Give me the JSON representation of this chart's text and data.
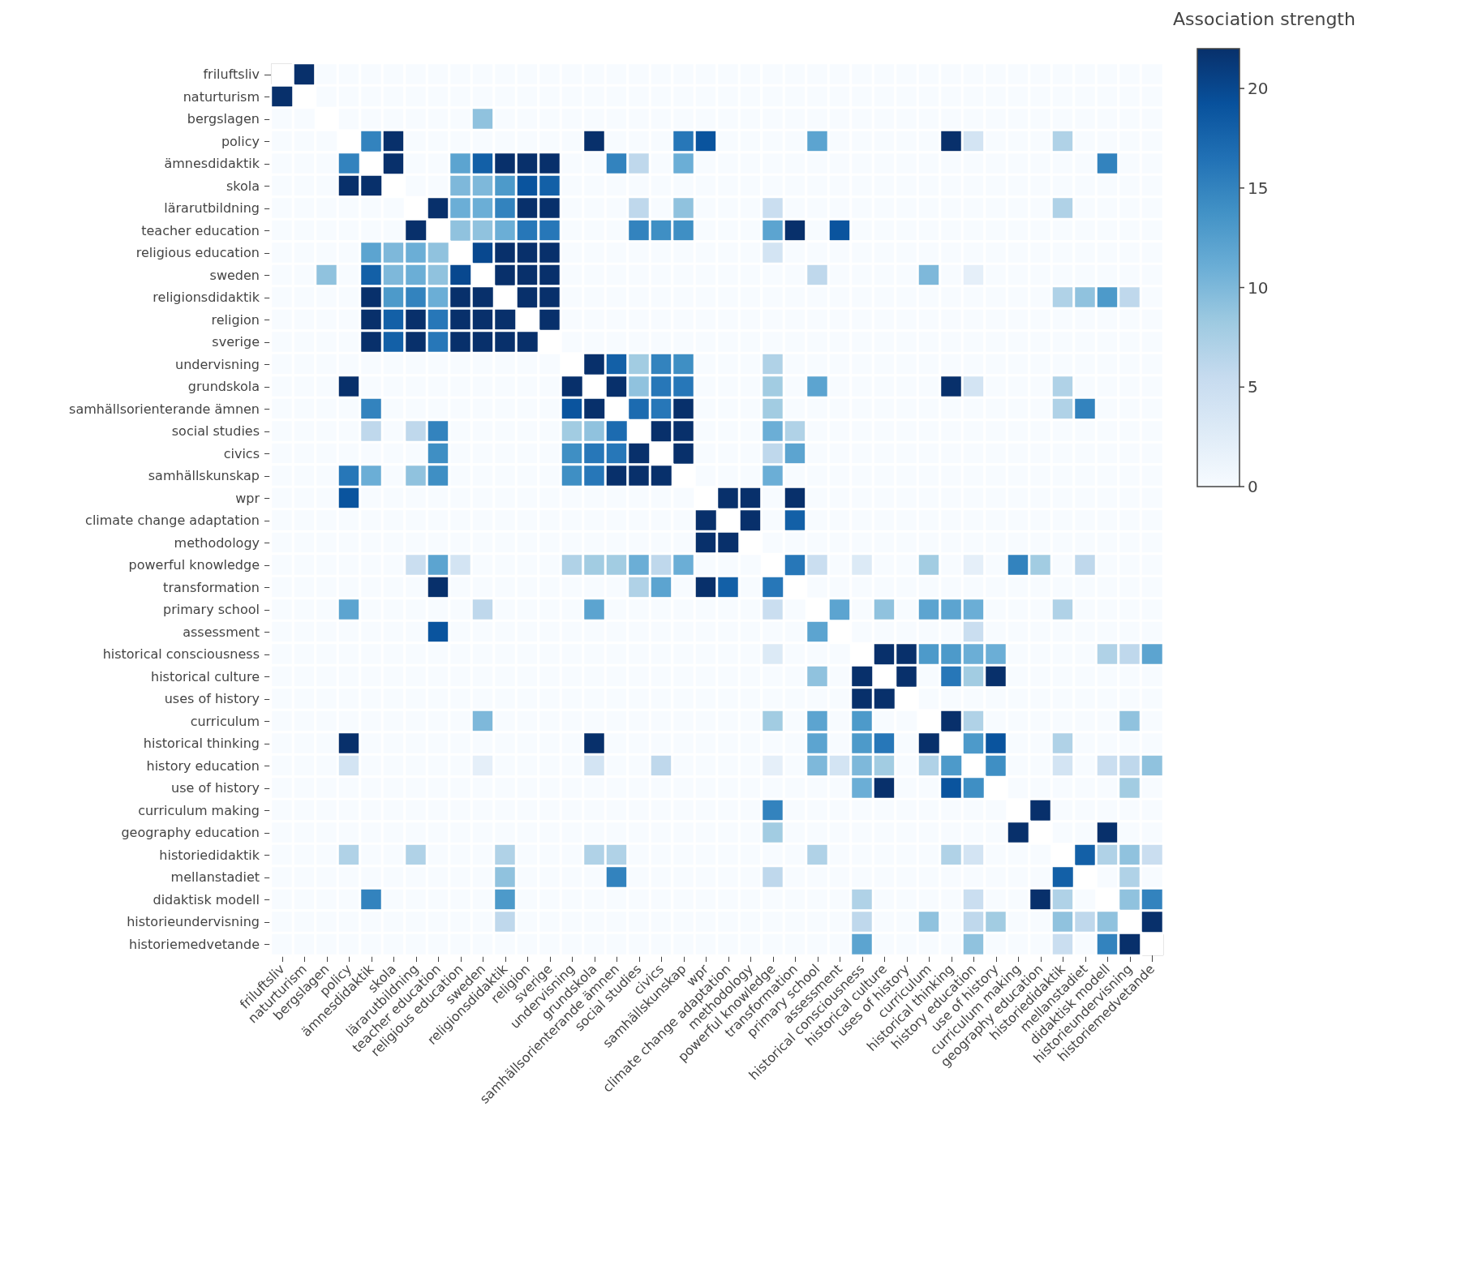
{
  "chart_data": {
    "type": "heatmap",
    "clabel": "Association strength",
    "categories": [
      "friluftsliv",
      "naturturism",
      "bergslagen",
      "policy",
      "ämnesdidaktik",
      "skola",
      "lärarutbildning",
      "teacher education",
      "religious education",
      "sweden",
      "religionsdidaktik",
      "religion",
      "sverige",
      "undervisning",
      "grundskola",
      "samhällsorienterande ämnen",
      "social studies",
      "civics",
      "samhällskunskap",
      "wpr",
      "climate change adaptation",
      "methodology",
      "powerful knowledge",
      "transformation",
      "primary school",
      "assessment",
      "historical consciousness",
      "historical culture",
      "uses of history",
      "curriculum",
      "historical thinking",
      "history education",
      "use of history",
      "curriculum making",
      "geography education",
      "historiedidaktik",
      "mellanstadiet",
      "didaktisk modell",
      "historieundervisning",
      "historiemedvetande"
    ],
    "y_categories": [
      "friluftsliv",
      "naturturism",
      "bergslagen",
      "policy",
      "ämnesdidaktik",
      "skola",
      "lärarutbildning",
      "teacher education",
      "religious education",
      "sweden",
      "religionsdidaktik",
      "religion",
      "sverige",
      "undervisning",
      "grundskola",
      "samhällsorienterande ämnen",
      "social studies",
      "civics",
      "samhällskunskap",
      "wpr",
      "climate change adaptation",
      "methodology",
      "powerful knowledge",
      "transformation",
      "primary school",
      "assessment",
      "historical consciousness",
      "historical culture",
      "uses of history",
      "curriculum",
      "historical thinking",
      "history education",
      "use of history",
      "curriculum making",
      "geography education",
      "historiedidaktik",
      "mellanstadiet",
      "didaktisk modell",
      "historieundervisning",
      "historiemedvetande"
    ],
    "clim": [
      0,
      22
    ],
    "cticks": [
      0,
      5,
      10,
      15,
      20
    ],
    "cells": [
      [
        null,
        22,
        0,
        0,
        0,
        0,
        0,
        0,
        0,
        0,
        0,
        0,
        0,
        0,
        0,
        0,
        0,
        0,
        0,
        0,
        0,
        0,
        0,
        0,
        0,
        0,
        0,
        0,
        0,
        0,
        0,
        0,
        0,
        0,
        0,
        0,
        0,
        0,
        0,
        0
      ],
      [
        22,
        null,
        0,
        0,
        0,
        0,
        0,
        0,
        0,
        0,
        0,
        0,
        0,
        0,
        0,
        0,
        0,
        0,
        0,
        0,
        0,
        0,
        0,
        0,
        0,
        0,
        0,
        0,
        0,
        0,
        0,
        0,
        0,
        0,
        0,
        0,
        0,
        0,
        0,
        0
      ],
      [
        0,
        0,
        null,
        0,
        0,
        0,
        0,
        0,
        0,
        9,
        0,
        0,
        0,
        0,
        0,
        0,
        0,
        0,
        0,
        0,
        0,
        0,
        0,
        0,
        0,
        0,
        0,
        0,
        0,
        0,
        0,
        0,
        0,
        0,
        0,
        0,
        0,
        0,
        0,
        0
      ],
      [
        0,
        0,
        0,
        null,
        15,
        22,
        0,
        0,
        0,
        0,
        0,
        0,
        0,
        0,
        22,
        0,
        0,
        0,
        16,
        19,
        0,
        0,
        0,
        0,
        12,
        0,
        0,
        0,
        0,
        0,
        22,
        4,
        0,
        0,
        0,
        7,
        0,
        0,
        0,
        0
      ],
      [
        0,
        0,
        0,
        15,
        null,
        22,
        0,
        0,
        12,
        18,
        22,
        22,
        22,
        0,
        0,
        15,
        6,
        0,
        11,
        0,
        0,
        0,
        0,
        0,
        0,
        0,
        0,
        0,
        0,
        0,
        0,
        0,
        0,
        0,
        0,
        0,
        0,
        15,
        0,
        0
      ],
      [
        0,
        0,
        0,
        22,
        22,
        null,
        0,
        0,
        10,
        10,
        13,
        19,
        18,
        0,
        0,
        0,
        0,
        0,
        0,
        0,
        0,
        0,
        0,
        0,
        0,
        0,
        0,
        0,
        0,
        0,
        0,
        0,
        0,
        0,
        0,
        0,
        0,
        0,
        0,
        0
      ],
      [
        0,
        0,
        0,
        0,
        0,
        0,
        null,
        22,
        11,
        11,
        15,
        22,
        22,
        0,
        0,
        0,
        6,
        0,
        9,
        0,
        0,
        0,
        5,
        0,
        0,
        0,
        0,
        0,
        0,
        0,
        0,
        0,
        0,
        0,
        0,
        7,
        0,
        0,
        0,
        0
      ],
      [
        0,
        0,
        0,
        0,
        0,
        0,
        22,
        null,
        9,
        9,
        11,
        16,
        16,
        0,
        0,
        0,
        15,
        14,
        14,
        0,
        0,
        0,
        12,
        22,
        0,
        19,
        0,
        0,
        0,
        0,
        0,
        0,
        0,
        0,
        0,
        0,
        0,
        0,
        0,
        0
      ],
      [
        0,
        0,
        0,
        0,
        12,
        10,
        11,
        9,
        null,
        20,
        22,
        22,
        22,
        0,
        0,
        0,
        0,
        0,
        0,
        0,
        0,
        0,
        4,
        0,
        0,
        0,
        0,
        0,
        0,
        0,
        0,
        0,
        0,
        0,
        0,
        0,
        0,
        0,
        0,
        0
      ],
      [
        0,
        0,
        9,
        0,
        18,
        10,
        11,
        9,
        20,
        null,
        22,
        22,
        22,
        0,
        0,
        0,
        0,
        0,
        0,
        0,
        0,
        0,
        0,
        0,
        6,
        0,
        0,
        0,
        0,
        10,
        0,
        2,
        0,
        0,
        0,
        0,
        0,
        0,
        0,
        0
      ],
      [
        0,
        0,
        0,
        0,
        22,
        13,
        15,
        11,
        22,
        22,
        null,
        22,
        22,
        0,
        0,
        0,
        0,
        0,
        0,
        0,
        0,
        0,
        0,
        0,
        0,
        0,
        0,
        0,
        0,
        0,
        0,
        0,
        0,
        0,
        0,
        7,
        9,
        13,
        6,
        0
      ],
      [
        0,
        0,
        0,
        0,
        22,
        18,
        22,
        16,
        22,
        22,
        22,
        null,
        22,
        0,
        0,
        0,
        0,
        0,
        0,
        0,
        0,
        0,
        0,
        0,
        0,
        0,
        0,
        0,
        0,
        0,
        0,
        0,
        0,
        0,
        0,
        0,
        0,
        0,
        0,
        0
      ],
      [
        0,
        0,
        0,
        0,
        22,
        18,
        22,
        16,
        22,
        22,
        22,
        22,
        null,
        0,
        0,
        0,
        0,
        0,
        0,
        0,
        0,
        0,
        0,
        0,
        0,
        0,
        0,
        0,
        0,
        0,
        0,
        0,
        0,
        0,
        0,
        0,
        0,
        0,
        0,
        0
      ],
      [
        0,
        0,
        0,
        0,
        0,
        0,
        0,
        0,
        0,
        0,
        0,
        0,
        0,
        null,
        22,
        18,
        8,
        15,
        14,
        0,
        0,
        0,
        7,
        0,
        0,
        0,
        0,
        0,
        0,
        0,
        0,
        0,
        0,
        0,
        0,
        0,
        0,
        0,
        0,
        0
      ],
      [
        0,
        0,
        0,
        22,
        0,
        0,
        0,
        0,
        0,
        0,
        0,
        0,
        0,
        22,
        null,
        22,
        9,
        16,
        16,
        0,
        0,
        0,
        8,
        0,
        12,
        0,
        0,
        0,
        0,
        0,
        22,
        4,
        0,
        0,
        0,
        7,
        0,
        0,
        0,
        0
      ],
      [
        0,
        0,
        0,
        0,
        15,
        0,
        0,
        0,
        0,
        0,
        0,
        0,
        0,
        19,
        22,
        null,
        17,
        16,
        22,
        0,
        0,
        0,
        8,
        0,
        0,
        0,
        0,
        0,
        0,
        0,
        0,
        0,
        0,
        0,
        0,
        7,
        15,
        0,
        0,
        0
      ],
      [
        0,
        0,
        0,
        0,
        6,
        0,
        6,
        15,
        0,
        0,
        0,
        0,
        0,
        8,
        9,
        17,
        null,
        22,
        22,
        0,
        0,
        0,
        11,
        7,
        0,
        0,
        0,
        0,
        0,
        0,
        0,
        0,
        0,
        0,
        0,
        0,
        0,
        0,
        0,
        0
      ],
      [
        0,
        0,
        0,
        0,
        0,
        0,
        0,
        14,
        0,
        0,
        0,
        0,
        0,
        14,
        16,
        16,
        22,
        null,
        22,
        0,
        0,
        0,
        6,
        12,
        0,
        0,
        0,
        0,
        0,
        0,
        0,
        0,
        0,
        0,
        0,
        0,
        0,
        0,
        0,
        0
      ],
      [
        0,
        0,
        0,
        16,
        11,
        0,
        9,
        14,
        0,
        0,
        0,
        0,
        0,
        14,
        16,
        22,
        22,
        22,
        null,
        0,
        0,
        0,
        11,
        0,
        0,
        0,
        0,
        0,
        0,
        0,
        0,
        0,
        0,
        0,
        0,
        0,
        0,
        0,
        0,
        0
      ],
      [
        0,
        0,
        0,
        19,
        0,
        0,
        0,
        0,
        0,
        0,
        0,
        0,
        0,
        0,
        0,
        0,
        0,
        0,
        0,
        null,
        22,
        22,
        0,
        22,
        0,
        0,
        0,
        0,
        0,
        0,
        0,
        0,
        0,
        0,
        0,
        0,
        0,
        0,
        0,
        0
      ],
      [
        0,
        0,
        0,
        0,
        0,
        0,
        0,
        0,
        0,
        0,
        0,
        0,
        0,
        0,
        0,
        0,
        0,
        0,
        0,
        22,
        null,
        22,
        0,
        18,
        0,
        0,
        0,
        0,
        0,
        0,
        0,
        0,
        0,
        0,
        0,
        0,
        0,
        0,
        0,
        0
      ],
      [
        0,
        0,
        0,
        0,
        0,
        0,
        0,
        0,
        0,
        0,
        0,
        0,
        0,
        0,
        0,
        0,
        0,
        0,
        0,
        22,
        22,
        null,
        0,
        0,
        0,
        0,
        0,
        0,
        0,
        0,
        0,
        0,
        0,
        0,
        0,
        0,
        0,
        0,
        0,
        0
      ],
      [
        0,
        0,
        0,
        0,
        0,
        0,
        5,
        12,
        4,
        0,
        0,
        0,
        0,
        7,
        8,
        8,
        11,
        6,
        11,
        0,
        0,
        0,
        null,
        16,
        5,
        0,
        3,
        0,
        0,
        8,
        0,
        2,
        0,
        15,
        8,
        0,
        6,
        0,
        0,
        0
      ],
      [
        0,
        0,
        0,
        0,
        0,
        0,
        0,
        22,
        0,
        0,
        0,
        0,
        0,
        0,
        0,
        0,
        7,
        12,
        0,
        22,
        18,
        0,
        16,
        null,
        0,
        0,
        0,
        0,
        0,
        0,
        0,
        0,
        0,
        0,
        0,
        0,
        0,
        0,
        0,
        0
      ],
      [
        0,
        0,
        0,
        12,
        0,
        0,
        0,
        0,
        0,
        6,
        0,
        0,
        0,
        0,
        12,
        0,
        0,
        0,
        0,
        0,
        0,
        0,
        5,
        0,
        null,
        12,
        0,
        9,
        0,
        12,
        12,
        11,
        0,
        0,
        0,
        7,
        0,
        0,
        0,
        0
      ],
      [
        0,
        0,
        0,
        0,
        0,
        0,
        0,
        19,
        0,
        0,
        0,
        0,
        0,
        0,
        0,
        0,
        0,
        0,
        0,
        0,
        0,
        0,
        0,
        0,
        12,
        null,
        0,
        0,
        0,
        0,
        0,
        5,
        0,
        0,
        0,
        0,
        0,
        0,
        0,
        0
      ],
      [
        0,
        0,
        0,
        0,
        0,
        0,
        0,
        0,
        0,
        0,
        0,
        0,
        0,
        0,
        0,
        0,
        0,
        0,
        0,
        0,
        0,
        0,
        3,
        0,
        0,
        0,
        null,
        22,
        22,
        13,
        13,
        11,
        11,
        0,
        0,
        0,
        0,
        7,
        6,
        12
      ],
      [
        0,
        0,
        0,
        0,
        0,
        0,
        0,
        0,
        0,
        0,
        0,
        0,
        0,
        0,
        0,
        0,
        0,
        0,
        0,
        0,
        0,
        0,
        0,
        0,
        9,
        0,
        22,
        null,
        22,
        0,
        16,
        8,
        22,
        0,
        0,
        0,
        0,
        0,
        0,
        0
      ],
      [
        0,
        0,
        0,
        0,
        0,
        0,
        0,
        0,
        0,
        0,
        0,
        0,
        0,
        0,
        0,
        0,
        0,
        0,
        0,
        0,
        0,
        0,
        0,
        0,
        0,
        0,
        22,
        22,
        null,
        0,
        0,
        0,
        0,
        0,
        0,
        0,
        0,
        0,
        0,
        0
      ],
      [
        0,
        0,
        0,
        0,
        0,
        0,
        0,
        0,
        0,
        10,
        0,
        0,
        0,
        0,
        0,
        0,
        0,
        0,
        0,
        0,
        0,
        0,
        8,
        0,
        12,
        0,
        13,
        0,
        0,
        null,
        22,
        7,
        0,
        0,
        0,
        0,
        0,
        0,
        9,
        0
      ],
      [
        0,
        0,
        0,
        22,
        0,
        0,
        0,
        0,
        0,
        0,
        0,
        0,
        0,
        0,
        22,
        0,
        0,
        0,
        0,
        0,
        0,
        0,
        0,
        0,
        12,
        0,
        13,
        16,
        0,
        22,
        null,
        13,
        19,
        0,
        0,
        7,
        0,
        0,
        0,
        0
      ],
      [
        0,
        0,
        0,
        4,
        0,
        0,
        0,
        0,
        0,
        2,
        0,
        0,
        0,
        0,
        4,
        0,
        0,
        6,
        0,
        0,
        0,
        0,
        2,
        0,
        10,
        4,
        10,
        8,
        0,
        7,
        13,
        null,
        14,
        0,
        0,
        4,
        0,
        5,
        6,
        9
      ],
      [
        0,
        0,
        0,
        0,
        0,
        0,
        0,
        0,
        0,
        0,
        0,
        0,
        0,
        0,
        0,
        0,
        0,
        0,
        0,
        0,
        0,
        0,
        0,
        0,
        0,
        0,
        11,
        22,
        0,
        0,
        19,
        14,
        null,
        0,
        0,
        0,
        0,
        0,
        8,
        0
      ],
      [
        0,
        0,
        0,
        0,
        0,
        0,
        0,
        0,
        0,
        0,
        0,
        0,
        0,
        0,
        0,
        0,
        0,
        0,
        0,
        0,
        0,
        0,
        15,
        0,
        0,
        0,
        0,
        0,
        0,
        0,
        0,
        0,
        0,
        null,
        22,
        0,
        0,
        0,
        0,
        0
      ],
      [
        0,
        0,
        0,
        0,
        0,
        0,
        0,
        0,
        0,
        0,
        0,
        0,
        0,
        0,
        0,
        0,
        0,
        0,
        0,
        0,
        0,
        0,
        8,
        0,
        0,
        0,
        0,
        0,
        0,
        0,
        0,
        0,
        0,
        22,
        null,
        0,
        0,
        22,
        0,
        0
      ],
      [
        0,
        0,
        0,
        7,
        0,
        0,
        7,
        0,
        0,
        0,
        7,
        0,
        0,
        0,
        7,
        7,
        0,
        0,
        0,
        0,
        0,
        0,
        0,
        0,
        7,
        0,
        0,
        0,
        0,
        0,
        7,
        4,
        0,
        0,
        0,
        null,
        18,
        7,
        9,
        5
      ],
      [
        0,
        0,
        0,
        0,
        0,
        0,
        0,
        0,
        0,
        0,
        9,
        0,
        0,
        0,
        0,
        15,
        0,
        0,
        0,
        0,
        0,
        0,
        6,
        0,
        0,
        0,
        0,
        0,
        0,
        0,
        0,
        0,
        0,
        0,
        0,
        18,
        null,
        0,
        7,
        0
      ],
      [
        0,
        0,
        0,
        0,
        15,
        0,
        0,
        0,
        0,
        0,
        13,
        0,
        0,
        0,
        0,
        0,
        0,
        0,
        0,
        0,
        0,
        0,
        0,
        0,
        0,
        0,
        7,
        0,
        0,
        0,
        0,
        5,
        0,
        0,
        22,
        7,
        0,
        null,
        9,
        15
      ],
      [
        0,
        0,
        0,
        0,
        0,
        0,
        0,
        0,
        0,
        0,
        6,
        0,
        0,
        0,
        0,
        0,
        0,
        0,
        0,
        0,
        0,
        0,
        0,
        0,
        0,
        0,
        6,
        0,
        0,
        9,
        0,
        6,
        8,
        0,
        0,
        9,
        6,
        9,
        null,
        22
      ],
      [
        0,
        0,
        0,
        0,
        0,
        0,
        0,
        0,
        0,
        0,
        0,
        0,
        0,
        0,
        0,
        0,
        0,
        0,
        0,
        0,
        0,
        0,
        0,
        0,
        0,
        0,
        12,
        0,
        0,
        0,
        0,
        9,
        0,
        0,
        0,
        5,
        0,
        15,
        22,
        null
      ]
    ]
  }
}
